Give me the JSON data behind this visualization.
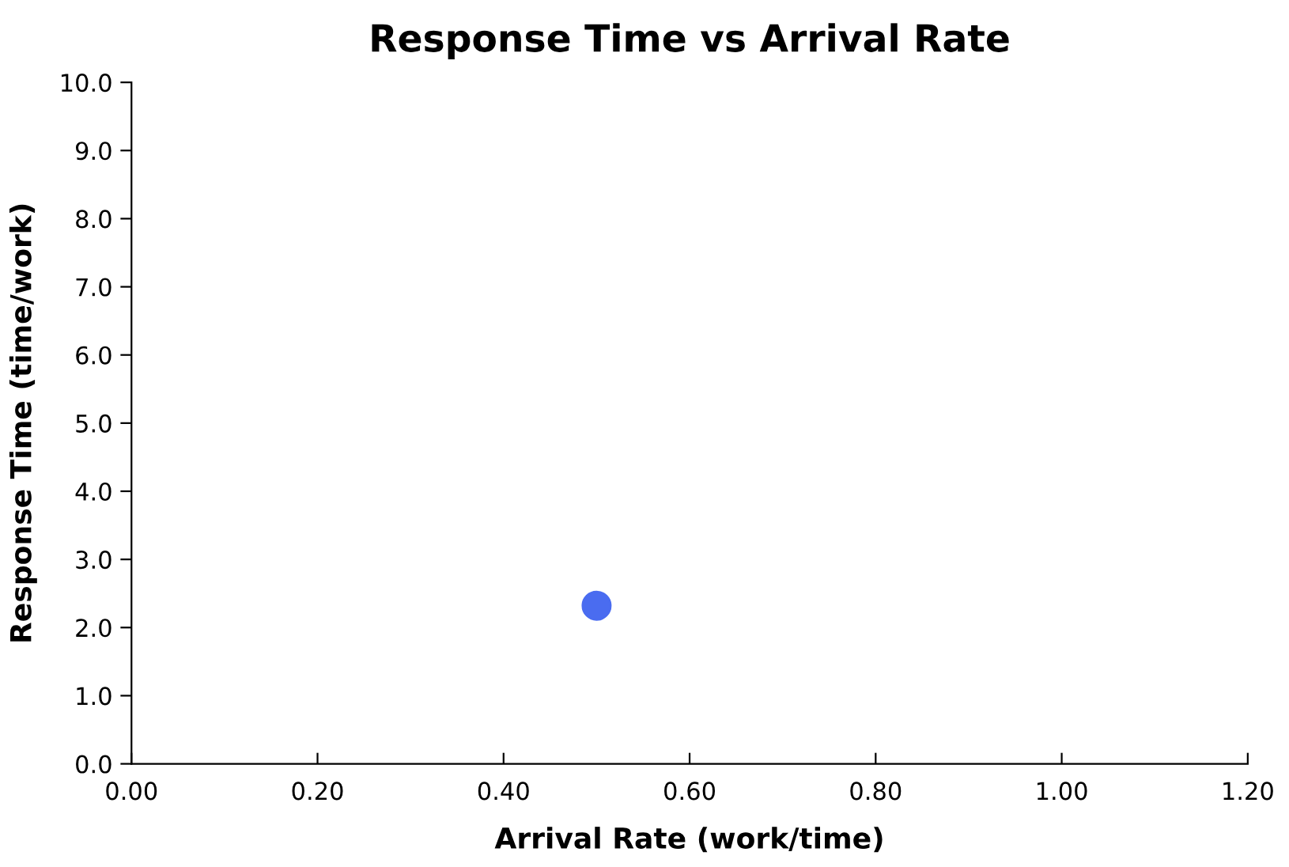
{
  "chart_data": {
    "type": "scatter",
    "title": "Response Time vs Arrival Rate",
    "xlabel": "Arrival Rate (work/time)",
    "ylabel": "Response Time (time/work)",
    "x": [
      0.5
    ],
    "series": [
      {
        "color": "#4a6cf0",
        "values": [
          2.32
        ]
      }
    ],
    "xlim": [
      0,
      1.2
    ],
    "xticks": [
      {
        "value": 0,
        "label": "0.00"
      },
      {
        "value": 0.2,
        "label": "0.20"
      },
      {
        "value": 0.4,
        "label": "0.40"
      },
      {
        "value": 0.6,
        "label": "0.60"
      },
      {
        "value": 0.8,
        "label": "0.80"
      },
      {
        "value": 1.0,
        "label": "1.00"
      },
      {
        "value": 1.2,
        "label": "1.20"
      }
    ],
    "ylim": [
      0,
      10
    ],
    "yticks": [
      {
        "value": 0,
        "label": "0.0"
      },
      {
        "value": 1,
        "label": "1.0"
      },
      {
        "value": 2,
        "label": "2.0"
      },
      {
        "value": 3,
        "label": "3.0"
      },
      {
        "value": 4,
        "label": "4.0"
      },
      {
        "value": 5,
        "label": "5.0"
      },
      {
        "value": 6,
        "label": "6.0"
      },
      {
        "value": 7,
        "label": "7.0"
      },
      {
        "value": 8,
        "label": "8.0"
      },
      {
        "value": 9,
        "label": "9.0"
      },
      {
        "value": 10,
        "label": "10.0"
      }
    ],
    "grid": false,
    "marker": "circle"
  }
}
